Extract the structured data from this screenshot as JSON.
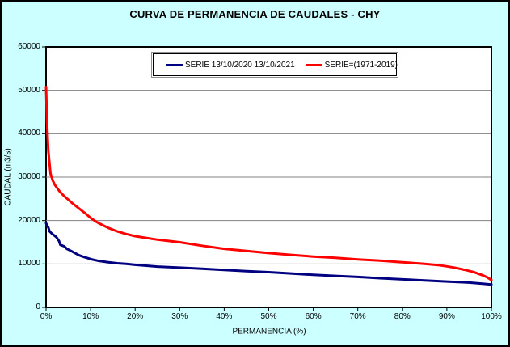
{
  "frame": {
    "background_color": "#CCFFFF",
    "border_color": "#000000"
  },
  "chart_data": {
    "type": "line",
    "title": "CURVA DE PERMANENCIA DE CAUDALES - CHY",
    "xlabel": "PERMANENCIA (%)",
    "ylabel": "CAUDAL (m3/s)",
    "xlim": [
      0,
      100
    ],
    "ylim": [
      0,
      60000
    ],
    "x_ticks": [
      "0%",
      "10%",
      "20%",
      "30%",
      "40%",
      "50%",
      "60%",
      "70%",
      "80%",
      "90%",
      "100%"
    ],
    "y_ticks": [
      "0",
      "10000",
      "20000",
      "30000",
      "40000",
      "50000",
      "60000"
    ],
    "grid": "horizontal-gridlines-on",
    "gridline_color": "#808080",
    "plot_bg": "#FFFFFF",
    "legend_position": "top-center-inside",
    "series": [
      {
        "name": "SERIE 13/10/2020 13/10/2021",
        "color": "#000080",
        "x": [
          0,
          0.5,
          0.8,
          1.4,
          1.8,
          2.3,
          2.9,
          3.2,
          4.1,
          4.7,
          5.6,
          6.2,
          7.4,
          8.6,
          10.2,
          12,
          14,
          16,
          18,
          20,
          25,
          30,
          35,
          40,
          45,
          50,
          55,
          60,
          65,
          70,
          75,
          80,
          85,
          90,
          95,
          98,
          100
        ],
        "y": [
          19400,
          18400,
          17500,
          16900,
          16600,
          16200,
          15300,
          14400,
          14050,
          13450,
          13000,
          12650,
          12000,
          11570,
          11070,
          10650,
          10400,
          10150,
          10000,
          9800,
          9400,
          9150,
          8900,
          8600,
          8350,
          8100,
          7800,
          7500,
          7250,
          7000,
          6700,
          6450,
          6200,
          5950,
          5700,
          5450,
          5250
        ]
      },
      {
        "name": "SERIE=(1971-2019)",
        "color": "#FF0000",
        "x": [
          0,
          0.2,
          0.5,
          1,
          1.5,
          2,
          3,
          4,
          5,
          6,
          7,
          8,
          9,
          10,
          11,
          12,
          14,
          16,
          18,
          20,
          25,
          30,
          35,
          40,
          45,
          50,
          55,
          60,
          65,
          70,
          75,
          80,
          85,
          88,
          90,
          92,
          94,
          96,
          98,
          99,
          100
        ],
        "y": [
          50800,
          43000,
          36000,
          30800,
          29200,
          28200,
          26800,
          25700,
          24800,
          23900,
          23100,
          22300,
          21500,
          20600,
          19900,
          19300,
          18300,
          17500,
          16900,
          16400,
          15600,
          15000,
          14200,
          13500,
          13000,
          12500,
          12100,
          11700,
          11400,
          11050,
          10750,
          10400,
          10000,
          9750,
          9450,
          9100,
          8650,
          8150,
          7400,
          6950,
          6300
        ]
      }
    ]
  }
}
